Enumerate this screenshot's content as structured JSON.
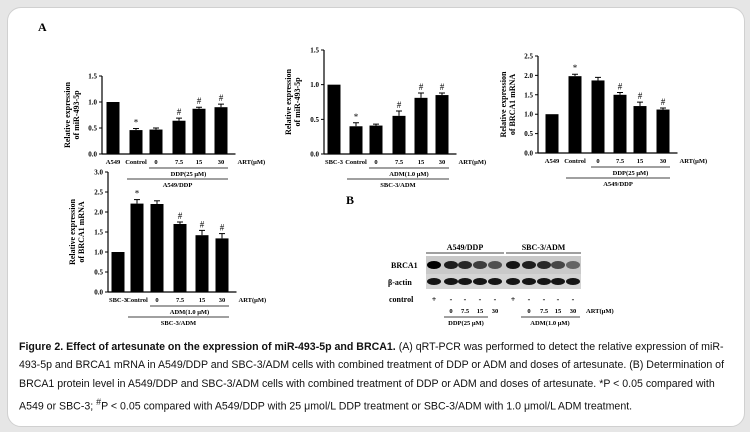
{
  "figure": {
    "panel_a_label": "A",
    "panel_b_label": "B"
  },
  "chart_data": [
    {
      "type": "bar",
      "ylabel": "Relative expression\nof miR-493-5p",
      "ylim": [
        0,
        1.5
      ],
      "yticks": [
        0.0,
        0.5,
        1.0,
        1.5
      ],
      "yticklabels": [
        "0.0",
        "0.5",
        "1.0",
        "1.5"
      ],
      "categories": [
        "A549",
        "Control",
        "0",
        "7.5",
        "15",
        "30"
      ],
      "values": [
        1.0,
        0.46,
        0.47,
        0.64,
        0.87,
        0.9
      ],
      "errors": [
        0,
        0.03,
        0.03,
        0.05,
        0.03,
        0.06
      ],
      "marks": [
        "",
        "*",
        "",
        "#",
        "#",
        "#"
      ],
      "unit_label": "ART(μM)",
      "bracket_inner": "DDP(25 μM)",
      "bracket_outer": "A549/DDP"
    },
    {
      "type": "bar",
      "ylabel": "Relative expression\nof miR-493-5p",
      "ylim": [
        0,
        1.5
      ],
      "yticks": [
        0.0,
        0.5,
        1.0,
        1.5
      ],
      "yticklabels": [
        "0.0",
        "0.5",
        "1.0",
        "1.5"
      ],
      "categories": [
        "SBC-3",
        "Control",
        "0",
        "7.5",
        "15",
        "30"
      ],
      "values": [
        1.0,
        0.4,
        0.41,
        0.55,
        0.81,
        0.85
      ],
      "errors": [
        0,
        0.05,
        0.02,
        0.07,
        0.07,
        0.03
      ],
      "marks": [
        "",
        "*",
        "",
        "#",
        "#",
        "#"
      ],
      "unit_label": "ART(μM)",
      "bracket_inner": "ADM(1.0 μM)",
      "bracket_outer": "SBC-3/ADM"
    },
    {
      "type": "bar",
      "ylabel": "Relative expression\nof BRCA1 mRNA",
      "ylim": [
        0,
        2.5
      ],
      "yticks": [
        0.0,
        0.5,
        1.0,
        1.5,
        2.0,
        2.5
      ],
      "yticklabels": [
        "0.0",
        "0.5",
        "1.0",
        "1.5",
        "2.0",
        "2.5"
      ],
      "categories": [
        "A549",
        "Control",
        "0",
        "7.5",
        "15",
        "30"
      ],
      "values": [
        1.0,
        1.98,
        1.87,
        1.5,
        1.21,
        1.12
      ],
      "errors": [
        0,
        0.05,
        0.08,
        0.06,
        0.1,
        0.04
      ],
      "marks": [
        "",
        "*",
        "",
        "#",
        "#",
        "#"
      ],
      "unit_label": "ART(μM)",
      "bracket_inner": "DDP(25 μM)",
      "bracket_outer": "A549/DDP"
    },
    {
      "type": "bar",
      "ylabel": "Relative expression\nof BRCA1 mRNA",
      "ylim": [
        0,
        3.0
      ],
      "yticks": [
        0.0,
        0.5,
        1.0,
        1.5,
        2.0,
        2.5,
        3.0
      ],
      "yticklabels": [
        "0.0",
        "0.5",
        "1.0",
        "1.5",
        "2.0",
        "2.5",
        "3.0"
      ],
      "categories": [
        "SBC-3",
        "Control",
        "0",
        "7.5",
        "15",
        "30"
      ],
      "values": [
        1.0,
        2.21,
        2.2,
        1.7,
        1.42,
        1.34
      ],
      "errors": [
        0,
        0.1,
        0.08,
        0.05,
        0.12,
        0.12
      ],
      "marks": [
        "",
        "*",
        "",
        "#",
        "#",
        "#"
      ],
      "unit_label": "ART(μM)",
      "bracket_inner": "ADM(1.0 μM)",
      "bracket_outer": "SBC-3/ADM"
    }
  ],
  "blot": {
    "group_labels": [
      "A549/DDP",
      "SBC-3/ADM"
    ],
    "row_labels": [
      "BRCA1",
      "β-actin"
    ],
    "control_label": "control",
    "control_marks": [
      "+",
      "-",
      "-",
      "-",
      "-",
      "+",
      "-",
      "-",
      "-",
      "-"
    ],
    "art_values": [
      "0",
      "7.5",
      "15",
      "30",
      "0",
      "7.5",
      "15",
      "30"
    ],
    "art_label": "ART(μM)",
    "treatment_labels": [
      "DDP(25 μM)",
      "ADM(1.0 μM)"
    ],
    "brca1_intensity": [
      1.0,
      0.85,
      0.8,
      0.7,
      0.6,
      0.9,
      0.85,
      0.8,
      0.65,
      0.5
    ],
    "actin_intensity": [
      0.9,
      0.9,
      0.9,
      0.9,
      0.9,
      0.9,
      0.9,
      0.9,
      0.9,
      0.9
    ]
  },
  "caption": {
    "bold": "Figure 2. Effect of artesunate on the expression of miR-493-5p and BRCA1.",
    "part1": " (A) qRT-PCR was performed to detect the relative expression of miR-493-5p and BRCA1 mRNA in A549/DDP and SBC-3/ADM cells with combined treatment of DDP or ADM and doses of artesunate. (B) Determination of BRCA1 protein level in A549/DDP and SBC-3/ADM cells with combined treatment of DDP or ADM and doses of artesunate. *P < 0.05 compared with A549 or SBC-3; ",
    "sup": "#",
    "part2": "P < 0.05 compared with A549/DDP with 25 μmol/L DDP treatment or SBC-3/ADM with 1.0 μmol/L ADM treatment."
  }
}
